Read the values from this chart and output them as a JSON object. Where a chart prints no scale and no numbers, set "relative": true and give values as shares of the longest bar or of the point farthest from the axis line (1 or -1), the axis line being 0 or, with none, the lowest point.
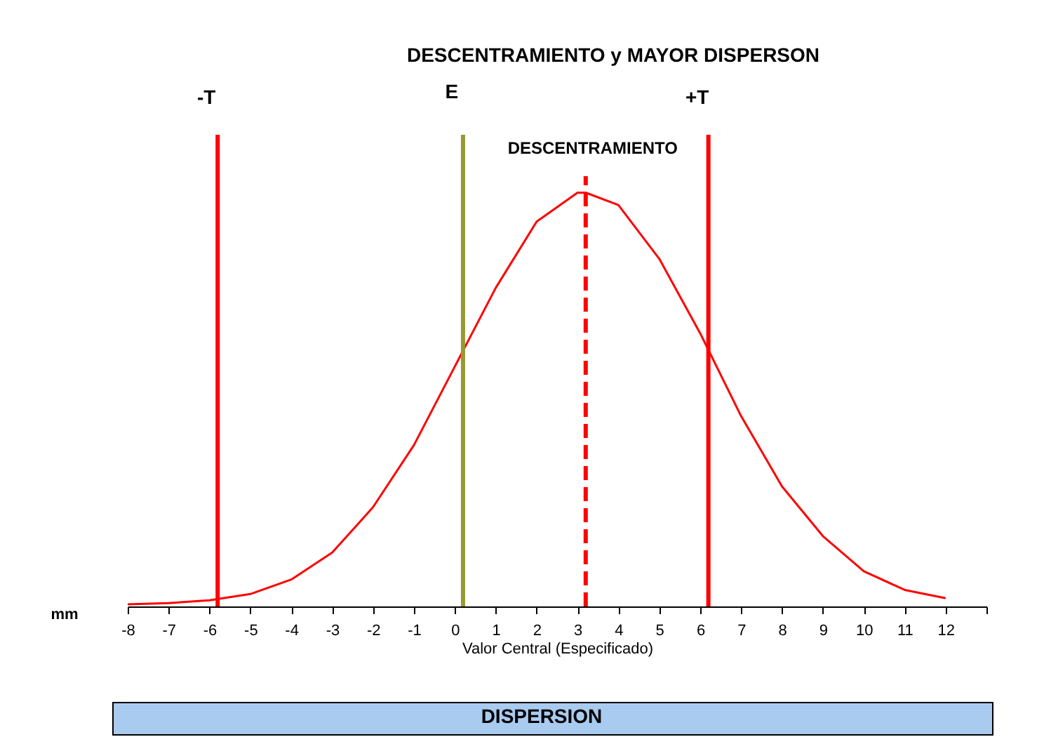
{
  "chart_data": {
    "type": "line",
    "title": "DESCENTRAMIENTO y MAYOR DISPERSON",
    "xlabel": "Valor Central (Especificado)",
    "relative": true,
    "x": [
      -8,
      -7,
      -6,
      -5,
      -4,
      -3,
      -2,
      -1,
      0,
      1,
      2,
      3,
      3.2,
      4,
      5,
      6,
      7,
      8,
      9,
      10,
      11,
      12
    ],
    "series": [
      {
        "color": "#ff0000",
        "values": [
          0.005,
          0.008,
          0.015,
          0.03,
          0.065,
          0.13,
          0.24,
          0.39,
          0.58,
          0.77,
          0.93,
          1.0,
          1.0,
          0.97,
          0.84,
          0.66,
          0.46,
          0.29,
          0.17,
          0.085,
          0.04,
          0.02
        ]
      }
    ],
    "xlim": [
      -8,
      13
    ],
    "xticks": [
      -8,
      -7,
      -6,
      -5,
      -4,
      -3,
      -2,
      -1,
      0,
      1,
      2,
      3,
      4,
      5,
      6,
      7,
      8,
      9,
      10,
      11,
      12,
      {
        "value": 13,
        "label": null
      }
    ],
    "ref_lines": [
      {
        "axis": "x",
        "value": -5.8,
        "label": "-T",
        "color": "#ff0000",
        "line_style": "solid"
      },
      {
        "axis": "x",
        "value": 0.2,
        "label": "E",
        "color": "#999933",
        "line_style": "solid"
      },
      {
        "axis": "x",
        "value": 3.2,
        "label": "DESCENTRAMIENTO",
        "color": "#ff0000",
        "line_style": "dashed"
      },
      {
        "axis": "x",
        "value": 6.2,
        "label": "+T",
        "color": "#ff0000",
        "line_style": "solid"
      }
    ],
    "annotations": [
      "mm",
      "DISPERSION"
    ],
    "grid": false,
    "marker": "none",
    "line_style": "solid"
  }
}
